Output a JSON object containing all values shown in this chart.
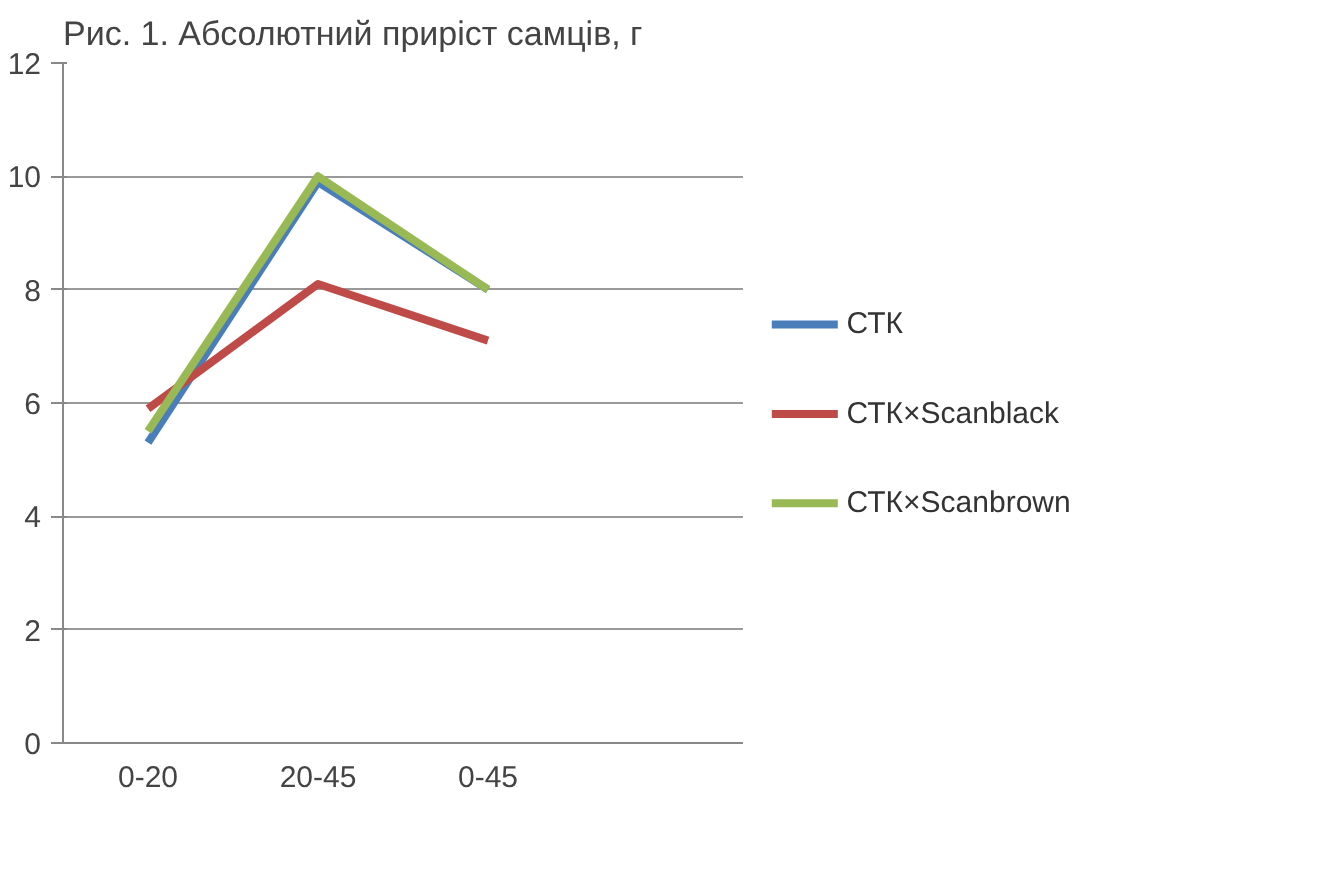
{
  "chart_data": {
    "type": "line",
    "title": "Рис. 1. Абсолютний приріст самців, г",
    "categories": [
      "0-20",
      "20-45",
      "0-45",
      null
    ],
    "series": [
      {
        "name": "СТК",
        "color": "#4a7ebb",
        "values": [
          5.3,
          9.9,
          8.0,
          null
        ]
      },
      {
        "name": "СТК×Scanblack",
        "color": "#be4b48",
        "values": [
          5.9,
          8.1,
          7.1,
          null
        ]
      },
      {
        "name": "СТК×Scanbrown",
        "color": "#98b954",
        "values": [
          5.5,
          10.0,
          8.0,
          null
        ]
      }
    ],
    "ylim": [
      0,
      12
    ],
    "yticks": [
      0,
      2,
      4,
      6,
      8,
      10,
      12
    ],
    "grid": "y",
    "legend": "right",
    "marker": "none",
    "line_style": "solid"
  }
}
